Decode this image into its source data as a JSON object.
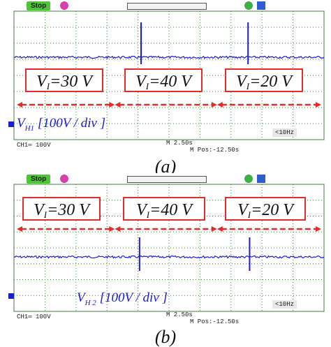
{
  "chart_data": [
    {
      "type": "line",
      "panel": "(a)",
      "status": "Stop",
      "channel_readout": "CH1═ 100V",
      "timebase": "M 2.50s",
      "position": "M Pos:-12.50s",
      "frequency": "<10Hz",
      "trace_label": {
        "symbol": "V",
        "sub": "H1",
        "scale": "[100V / div ]"
      },
      "trace_color": "#1c1cd1",
      "segments": [
        {
          "symbol": "V",
          "sub": "I",
          "value": "=30 V"
        },
        {
          "symbol": "V",
          "sub": "I",
          "value": "=40 V"
        },
        {
          "symbol": "V",
          "sub": "I",
          "value": "=20 V"
        }
      ],
      "spikes": [
        {
          "x_div": 4.1
        },
        {
          "x_div": 7.55
        }
      ]
    },
    {
      "type": "line",
      "panel": "(b)",
      "status": "Stop",
      "channel_readout": "CH1═ 100V",
      "timebase": "M 2.50s",
      "position": "M Pos:-12.50s",
      "frequency": "<10Hz",
      "trace_label": {
        "symbol": "V",
        "sub": "H 2",
        "scale": "[100V / div ]"
      },
      "trace_color": "#1c1cd1",
      "segments": [
        {
          "symbol": "V",
          "sub": "I",
          "value": "=30 V"
        },
        {
          "symbol": "V",
          "sub": "I",
          "value": "=40 V"
        },
        {
          "symbol": "V",
          "sub": "I",
          "value": "=20 V"
        }
      ],
      "spikes": [
        {
          "x_div": 4.05
        },
        {
          "x_div": 7.6
        }
      ]
    }
  ],
  "colors": {
    "grid": "#4a7a4a",
    "arrow": "#e32b2b",
    "box_border": "#e32b2b",
    "status": "#52c23a"
  }
}
